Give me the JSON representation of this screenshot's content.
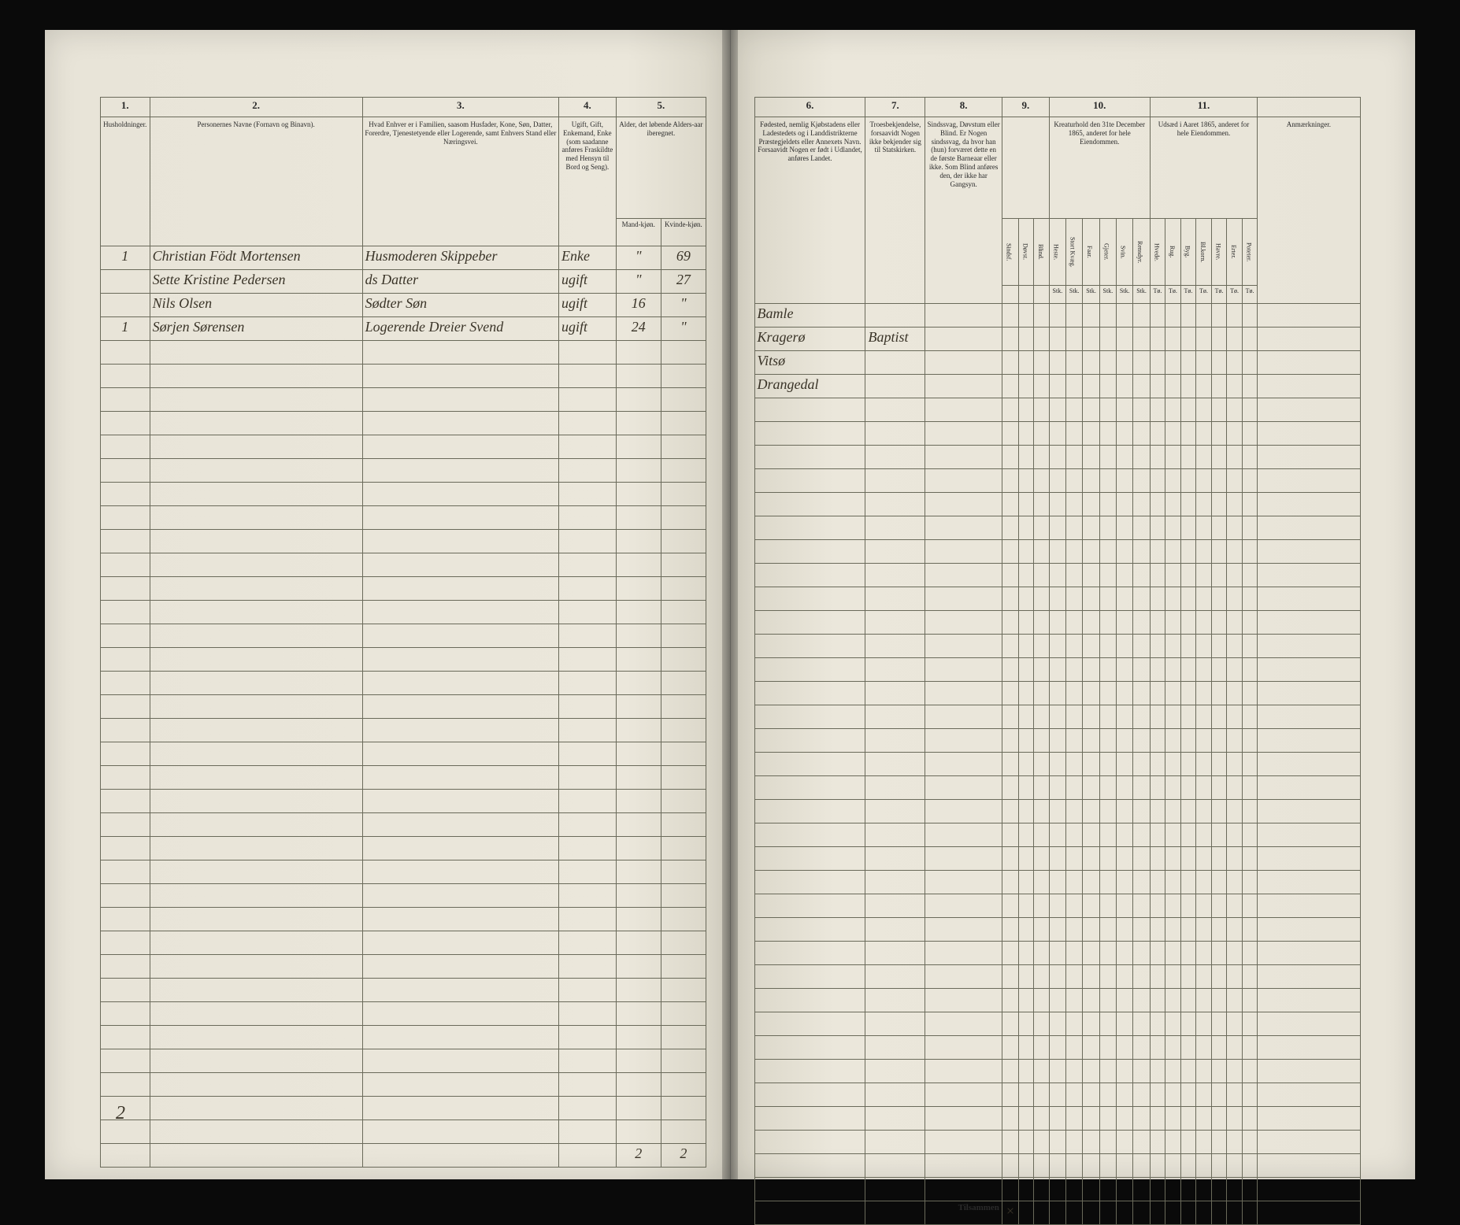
{
  "background_color": "#0a0a0a",
  "page_color": "#e8e4d8",
  "ink_color": "#3a3428",
  "rule_color": "#6a6a5a",
  "left_page": {
    "header_numbers": [
      "1.",
      "2.",
      "3.",
      "4.",
      "5."
    ],
    "headers": {
      "c1": "Husholdninger.",
      "c2": "Personernes Navne (Fornavn og Binavn).",
      "c3": "Hvad Enhver er i Familien, saasom Husfader, Kone, Søn, Datter, Forerdre, Tjenestetyende eller Logerende, samt Enhvers Stand eller Næringsvei.",
      "c4": "Ugift, Gift, Enkemand, Enke (som saadanne anføres Fraskildte med Hensyn til Bord og Seng).",
      "c5": "Alder, det løbende Alders-aar iberegnet.",
      "c5a": "Mand-kjøn.",
      "c5b": "Kvinde-kjøn."
    },
    "rows": [
      {
        "hh": "1",
        "name": "Christian Födt Mortensen",
        "rel": "Husmoderen Skippeber",
        "stat": "Enke",
        "m": "\"",
        "k": "69"
      },
      {
        "hh": "",
        "name": "Sette Kristine Pedersen",
        "rel": "ds Datter",
        "stat": "ugift",
        "m": "\"",
        "k": "27"
      },
      {
        "hh": "",
        "name": "Nils Olsen",
        "rel": "Sødter Søn",
        "stat": "ugift",
        "m": "16",
        "k": "\""
      },
      {
        "hh": "1",
        "name": "Sørjen Sørensen",
        "rel": "Logerende Dreier Svend",
        "stat": "ugift",
        "m": "24",
        "k": "\""
      }
    ],
    "footer": {
      "label": "",
      "m": "2",
      "k": "2"
    },
    "page_number": "2"
  },
  "right_page": {
    "header_numbers": [
      "6.",
      "7.",
      "8.",
      "9.",
      "10.",
      "11."
    ],
    "headers": {
      "c6": "Fødested, nemlig Kjøbstadens eller Ladestedets og i Landdistrikterne Præstegjeldets eller Annexets Navn. Forsaavidt Nogen er født i Udlandet, anføres Landet.",
      "c7": "Troesbekjendelse, forsaavidt Nogen ikke bekjender sig til Statskirken.",
      "c8": "Sindssvag, Døvstum eller Blind. Er Nogen sindssvag, da hvor han (hun) forværet dette en de første Barneaar eller ikke. Som Blind anføres den, der ikke har Gangsyn.",
      "c9": "",
      "c10": "Kreaturhold den 31te December 1865, anderet for hele Eiendommen.",
      "c11": "Udsæd i Aaret 1865, anderet for hele Eiendommen.",
      "remarks": "Anmærkninger."
    },
    "sub9": [
      "Sindsf.",
      "Døvst.",
      "Blind."
    ],
    "sub10": [
      "Heste.",
      "Stort Kvæg.",
      "Faar.",
      "Gjeter.",
      "Svin.",
      "Rensdyr."
    ],
    "sub11": [
      "Hvede.",
      "Rug.",
      "Byg.",
      "Bl.korn.",
      "Havre.",
      "Erter.",
      "Poteter."
    ],
    "unit_row": "Stk.",
    "unit_row2": "Tø.",
    "rows": [
      {
        "place": "Bamle",
        "faith": ""
      },
      {
        "place": "Kragerø",
        "faith": "Baptist"
      },
      {
        "place": "Vitsø",
        "faith": ""
      },
      {
        "place": "Drangedal",
        "faith": ""
      }
    ],
    "footer_label": "Tilsammen",
    "footer_mark": "×"
  }
}
